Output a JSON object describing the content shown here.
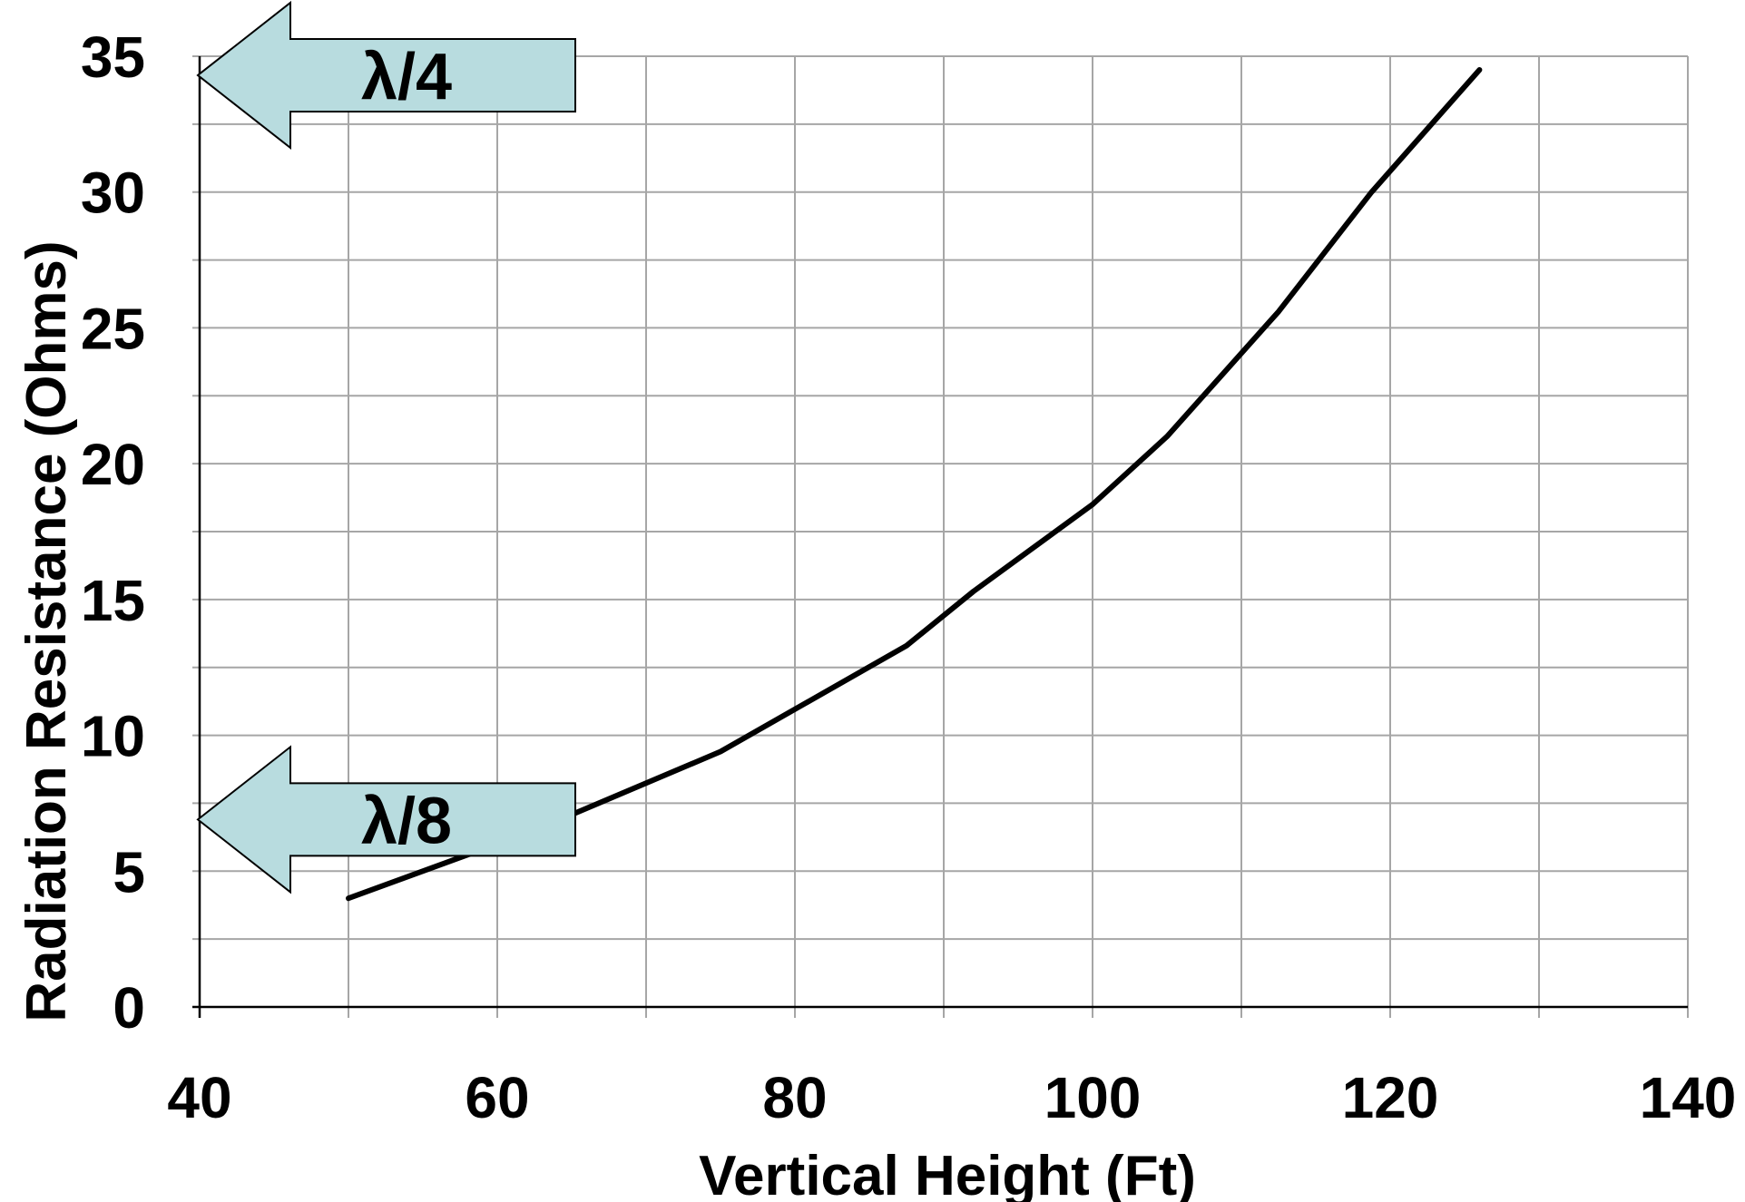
{
  "colors": {
    "background": "#ffffff",
    "grid": "#a6a6a6",
    "axis": "#000000",
    "line": "#000000",
    "callout_fill": "#b8dcdf",
    "callout_stroke": "#000000"
  },
  "chart_data": {
    "type": "line",
    "xlabel": "Vertical Height (Ft)",
    "ylabel": "Radiation Resistance (Ohms)",
    "xlim": [
      40,
      140
    ],
    "ylim": [
      0,
      35
    ],
    "x_ticks": [
      40,
      60,
      80,
      100,
      120,
      140
    ],
    "y_ticks": [
      0,
      5,
      10,
      15,
      20,
      25,
      30,
      35
    ],
    "x_minor_step": 10,
    "y_minor_step": 2.5,
    "grid": true,
    "series": [
      {
        "x": [
          50,
          62.5,
          75,
          87.5,
          92,
          100,
          105,
          112.5,
          118.75,
          126
        ],
        "values": [
          4.0,
          6.5,
          9.4,
          13.3,
          15.3,
          18.5,
          21.0,
          25.6,
          30.0,
          34.5
        ]
      }
    ],
    "annotations": [
      {
        "text": "λ/4",
        "y": 34.3
      },
      {
        "text": "λ/8",
        "y": 6.9
      }
    ]
  }
}
